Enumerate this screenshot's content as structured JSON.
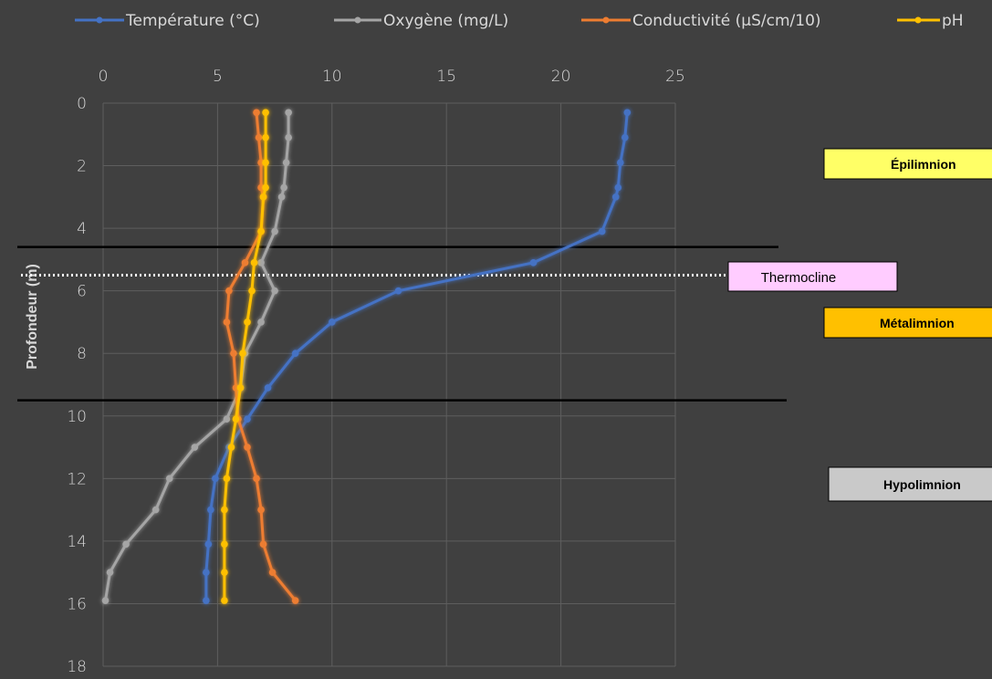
{
  "chart_data": {
    "type": "line",
    "xlim": [
      0,
      25
    ],
    "ylim": [
      0,
      18
    ],
    "x_ticks": [
      0,
      5,
      10,
      15,
      20,
      25
    ],
    "y_ticks": [
      0,
      2,
      4,
      6,
      8,
      10,
      12,
      14,
      16,
      18
    ],
    "ylabel": "Profondeur (m)",
    "y_inverted": true,
    "x_axis_position": "top",
    "grid": true,
    "legend_position": "top",
    "series": [
      {
        "name": "Température (°C)",
        "color": "#4472c4",
        "points": [
          [
            22.9,
            0.3
          ],
          [
            22.8,
            1.1
          ],
          [
            22.6,
            1.9
          ],
          [
            22.5,
            2.7
          ],
          [
            22.4,
            3
          ],
          [
            21.8,
            4.1
          ],
          [
            18.8,
            5.1
          ],
          [
            12.9,
            6
          ],
          [
            10,
            7
          ],
          [
            8.4,
            8
          ],
          [
            7.2,
            9.1
          ],
          [
            6.3,
            10.1
          ],
          [
            5.5,
            11
          ],
          [
            4.9,
            12
          ],
          [
            4.7,
            13
          ],
          [
            4.6,
            14.1
          ],
          [
            4.5,
            15
          ],
          [
            4.5,
            15.9
          ]
        ]
      },
      {
        "name": "Oxygène (mg/L)",
        "color": "#a5a5a5",
        "points": [
          [
            8.1,
            0.3
          ],
          [
            8.1,
            1.1
          ],
          [
            8,
            1.9
          ],
          [
            7.9,
            2.7
          ],
          [
            7.8,
            3
          ],
          [
            7.5,
            4.1
          ],
          [
            6.9,
            5.1
          ],
          [
            7.5,
            6
          ],
          [
            6.9,
            7
          ],
          [
            6.2,
            8
          ],
          [
            6,
            9.1
          ],
          [
            5.4,
            10.1
          ],
          [
            4,
            11
          ],
          [
            2.9,
            12
          ],
          [
            2.3,
            13
          ],
          [
            1,
            14.1
          ],
          [
            0.3,
            15
          ],
          [
            0.1,
            15.9
          ]
        ]
      },
      {
        "name": "Conductivité (µS/cm/10)",
        "color": "#ed7d31",
        "points": [
          [
            6.7,
            0.3
          ],
          [
            6.8,
            1.1
          ],
          [
            6.9,
            1.9
          ],
          [
            6.9,
            2.7
          ],
          [
            7,
            3
          ],
          [
            6.9,
            4.1
          ],
          [
            6.2,
            5.1
          ],
          [
            5.5,
            6
          ],
          [
            5.4,
            7
          ],
          [
            5.7,
            8
          ],
          [
            5.8,
            9.1
          ],
          [
            5.9,
            10.1
          ],
          [
            6.3,
            11
          ],
          [
            6.7,
            12
          ],
          [
            6.9,
            13
          ],
          [
            7,
            14.1
          ],
          [
            7.4,
            15
          ],
          [
            8.4,
            15.9
          ]
        ]
      },
      {
        "name": "pH",
        "color": "#ffc000",
        "points": [
          [
            7.1,
            0.3
          ],
          [
            7.1,
            1.1
          ],
          [
            7.1,
            1.9
          ],
          [
            7.1,
            2.7
          ],
          [
            7,
            3
          ],
          [
            6.9,
            4.1
          ],
          [
            6.6,
            5.1
          ],
          [
            6.5,
            6
          ],
          [
            6.3,
            7
          ],
          [
            6.1,
            8
          ],
          [
            6,
            9.1
          ],
          [
            5.8,
            10.1
          ],
          [
            5.6,
            11
          ],
          [
            5.4,
            12
          ],
          [
            5.3,
            13
          ],
          [
            5.3,
            14.1
          ],
          [
            5.3,
            15
          ],
          [
            5.3,
            15.9
          ]
        ]
      }
    ],
    "reference_lines": [
      {
        "depth": 4.6,
        "style": "solid"
      },
      {
        "depth": 5.5,
        "style": "dotted"
      },
      {
        "depth": 9.5,
        "style": "solid"
      }
    ],
    "annotations": {
      "thermocline": {
        "label": "Thermocline",
        "color": "#ffccff"
      },
      "epilimnion": {
        "label": "Épilimnion",
        "color": "#ffff66"
      },
      "metalimnion": {
        "label": "Métalimnion",
        "color": "#ffc000"
      },
      "hypolimnion": {
        "label": "Hypolimnion",
        "color": "#c9c9c9"
      }
    }
  }
}
